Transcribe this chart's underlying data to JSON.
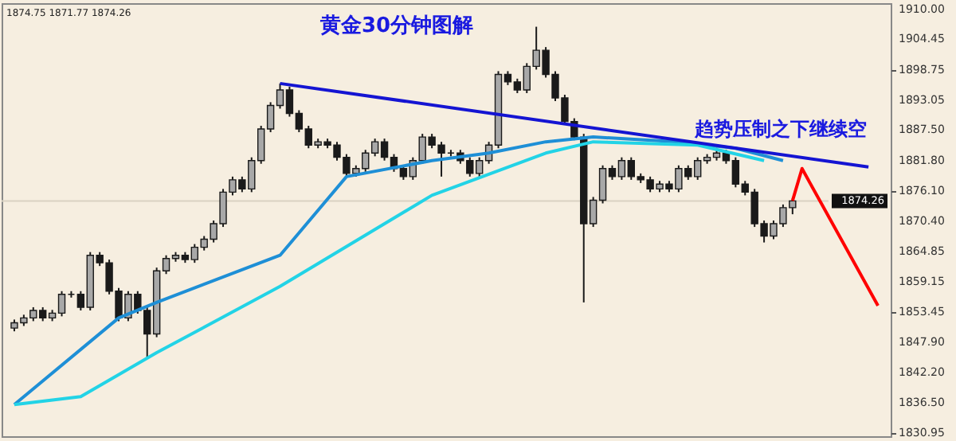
{
  "chart_data": {
    "type": "candlestick",
    "title": "黄金30分钟图解",
    "annotations": [
      "趋势压制之下继续空",
      "1874.75 1871.77 1874.26"
    ],
    "categories": [
      null,
      null,
      null,
      null,
      null,
      null,
      null,
      null,
      null,
      null,
      null,
      null,
      null,
      null,
      null,
      null,
      null,
      null,
      null,
      null,
      null,
      null,
      null,
      null,
      null,
      null,
      null,
      null,
      null,
      null,
      null,
      null,
      null,
      null,
      null,
      null,
      null,
      null,
      null,
      null,
      null,
      null,
      null,
      null,
      null,
      null,
      null,
      null,
      null,
      null,
      null,
      null,
      null,
      null,
      null,
      null,
      null,
      null,
      null,
      null,
      null,
      null,
      null,
      null,
      null,
      null,
      null,
      null,
      null,
      null,
      null,
      null,
      null,
      null,
      null,
      null,
      null,
      null,
      null,
      null,
      null,
      null,
      null,
      null,
      null,
      null,
      null,
      null,
      null,
      null,
      null,
      null
    ],
    "ohlc": [
      [
        1850.5,
        1852.1,
        1849.9,
        1851.5
      ],
      [
        1851.5,
        1853.0,
        1850.9,
        1852.4
      ],
      [
        1852.4,
        1854.4,
        1851.8,
        1853.8
      ],
      [
        1853.8,
        1854.4,
        1851.8,
        1852.4
      ],
      [
        1852.4,
        1853.9,
        1851.8,
        1853.3
      ],
      [
        1853.3,
        1857.4,
        1852.7,
        1856.8
      ],
      [
        1856.8,
        1857.4,
        1856.2,
        1856.8
      ],
      [
        1856.8,
        1857.4,
        1853.8,
        1854.4
      ],
      [
        1854.4,
        1864.7,
        1853.8,
        1864.1
      ],
      [
        1864.1,
        1864.7,
        1862.1,
        1862.7
      ],
      [
        1862.7,
        1863.3,
        1856.8,
        1857.4
      ],
      [
        1857.4,
        1858.0,
        1851.8,
        1852.4
      ],
      [
        1852.4,
        1857.4,
        1851.8,
        1856.8
      ],
      [
        1856.8,
        1857.4,
        1853.2,
        1853.8
      ],
      [
        1853.8,
        1854.4,
        1845.0,
        1849.4
      ],
      [
        1849.4,
        1861.8,
        1848.8,
        1861.2
      ],
      [
        1861.2,
        1864.1,
        1860.6,
        1863.5
      ],
      [
        1863.5,
        1864.7,
        1862.9,
        1864.1
      ],
      [
        1864.1,
        1864.7,
        1862.7,
        1863.3
      ],
      [
        1863.3,
        1866.2,
        1862.7,
        1865.6
      ],
      [
        1865.6,
        1867.7,
        1865.0,
        1867.1
      ],
      [
        1867.1,
        1870.6,
        1866.5,
        1870.0
      ],
      [
        1870.0,
        1876.5,
        1869.4,
        1875.9
      ],
      [
        1875.9,
        1878.8,
        1875.3,
        1878.2
      ],
      [
        1878.2,
        1878.8,
        1875.9,
        1876.5
      ],
      [
        1876.5,
        1882.4,
        1875.9,
        1881.8
      ],
      [
        1881.8,
        1888.3,
        1881.2,
        1887.7
      ],
      [
        1887.7,
        1892.7,
        1887.1,
        1892.1
      ],
      [
        1892.1,
        1896.2,
        1891.5,
        1895.0
      ],
      [
        1895.0,
        1895.6,
        1890.0,
        1890.6
      ],
      [
        1890.6,
        1891.2,
        1887.1,
        1887.7
      ],
      [
        1887.7,
        1888.3,
        1884.1,
        1884.7
      ],
      [
        1884.7,
        1885.9,
        1884.1,
        1885.3
      ],
      [
        1885.3,
        1885.9,
        1884.1,
        1884.7
      ],
      [
        1884.7,
        1885.3,
        1881.8,
        1882.4
      ],
      [
        1882.4,
        1883.0,
        1878.8,
        1879.4
      ],
      [
        1879.4,
        1880.9,
        1878.8,
        1880.3
      ],
      [
        1880.3,
        1883.8,
        1879.7,
        1883.2
      ],
      [
        1883.2,
        1885.9,
        1882.6,
        1885.3
      ],
      [
        1885.3,
        1885.9,
        1881.8,
        1882.4
      ],
      [
        1882.4,
        1883.0,
        1879.7,
        1880.3
      ],
      [
        1880.3,
        1880.9,
        1878.2,
        1878.8
      ],
      [
        1878.8,
        1882.4,
        1878.2,
        1881.8
      ],
      [
        1881.8,
        1886.8,
        1881.2,
        1886.2
      ],
      [
        1886.2,
        1886.8,
        1884.1,
        1884.7
      ],
      [
        1884.7,
        1885.3,
        1878.8,
        1883.2
      ],
      [
        1883.2,
        1883.8,
        1882.6,
        1883.2
      ],
      [
        1883.2,
        1883.8,
        1881.2,
        1881.8
      ],
      [
        1881.8,
        1882.4,
        1878.8,
        1879.4
      ],
      [
        1879.4,
        1882.4,
        1878.8,
        1881.8
      ],
      [
        1881.8,
        1885.3,
        1881.2,
        1884.7
      ],
      [
        1884.7,
        1898.5,
        1884.1,
        1897.9
      ],
      [
        1897.9,
        1898.5,
        1895.9,
        1896.5
      ],
      [
        1896.5,
        1897.1,
        1894.4,
        1895.0
      ],
      [
        1895.0,
        1900.0,
        1894.4,
        1899.4
      ],
      [
        1899.4,
        1906.8,
        1898.8,
        1902.4
      ],
      [
        1902.4,
        1903.0,
        1897.3,
        1897.9
      ],
      [
        1897.9,
        1898.5,
        1892.9,
        1893.5
      ],
      [
        1893.5,
        1894.1,
        1888.5,
        1889.1
      ],
      [
        1889.1,
        1889.7,
        1885.6,
        1886.2
      ],
      [
        1886.2,
        1886.8,
        1855.3,
        1870.0
      ],
      [
        1870.0,
        1875.0,
        1869.4,
        1874.4
      ],
      [
        1874.4,
        1880.9,
        1873.8,
        1880.3
      ],
      [
        1880.3,
        1880.9,
        1878.2,
        1878.8
      ],
      [
        1878.8,
        1882.4,
        1878.2,
        1881.8
      ],
      [
        1881.8,
        1882.4,
        1878.2,
        1878.8
      ],
      [
        1878.8,
        1879.4,
        1877.6,
        1878.2
      ],
      [
        1878.2,
        1878.8,
        1875.9,
        1876.5
      ],
      [
        1876.5,
        1878.0,
        1875.9,
        1877.4
      ],
      [
        1877.4,
        1878.0,
        1875.9,
        1876.5
      ],
      [
        1876.5,
        1880.9,
        1875.9,
        1880.3
      ],
      [
        1880.3,
        1880.9,
        1878.2,
        1878.8
      ],
      [
        1878.8,
        1882.4,
        1878.2,
        1881.8
      ],
      [
        1881.8,
        1883.0,
        1881.2,
        1882.4
      ],
      [
        1882.4,
        1884.2,
        1881.8,
        1883.2
      ],
      [
        1883.2,
        1883.8,
        1881.2,
        1881.8
      ],
      [
        1881.8,
        1882.4,
        1876.8,
        1877.4
      ],
      [
        1877.4,
        1878.0,
        1875.3,
        1875.9
      ],
      [
        1875.9,
        1876.5,
        1869.4,
        1870.0
      ],
      [
        1870.0,
        1870.6,
        1866.5,
        1867.7
      ],
      [
        1867.7,
        1870.6,
        1867.1,
        1870.0
      ],
      [
        1870.0,
        1873.6,
        1869.4,
        1873.0
      ],
      [
        1873.0,
        1874.75,
        1871.77,
        1874.26
      ],
      null,
      null,
      null,
      null,
      null,
      null,
      null,
      null,
      null
    ],
    "series": [
      {
        "type": "line",
        "color": "#1e8fd6",
        "values": [
          1836.2,
          null,
          null,
          null,
          null,
          null,
          null,
          null,
          null,
          null,
          null,
          1852.4,
          null,
          null,
          null,
          1855.3,
          null,
          null,
          null,
          null,
          null,
          null,
          null,
          null,
          null,
          null,
          null,
          null,
          1864.1,
          null,
          null,
          null,
          null,
          null,
          null,
          1878.8,
          null,
          null,
          null,
          null,
          null,
          null,
          null,
          null,
          1881.8,
          null,
          null,
          null,
          null,
          null,
          1883.2,
          null,
          null,
          null,
          null,
          null,
          1885.3,
          null,
          null,
          null,
          null,
          1886.2,
          null,
          null,
          null,
          null,
          null,
          null,
          null,
          null,
          1885.3,
          null,
          null,
          null,
          null,
          null,
          1884.1,
          null,
          null,
          null,
          null,
          1881.8,
          null,
          null,
          null,
          null,
          null,
          null,
          null,
          null,
          null,
          null
        ]
      },
      {
        "type": "line",
        "color": "#22d3e6",
        "values": [
          1836.2,
          null,
          null,
          null,
          null,
          null,
          null,
          1837.7,
          null,
          null,
          null,
          null,
          null,
          null,
          null,
          1845.9,
          null,
          null,
          null,
          null,
          null,
          null,
          null,
          null,
          null,
          null,
          null,
          null,
          1858.3,
          null,
          null,
          null,
          null,
          null,
          null,
          null,
          null,
          null,
          null,
          null,
          null,
          null,
          null,
          null,
          1875.3,
          null,
          null,
          null,
          null,
          null,
          null,
          null,
          null,
          null,
          null,
          null,
          1883.2,
          null,
          null,
          null,
          null,
          1885.3,
          null,
          null,
          null,
          null,
          null,
          null,
          null,
          null,
          null,
          null,
          1884.7,
          null,
          null,
          null,
          null,
          null,
          null,
          1881.8,
          null,
          null,
          null,
          null,
          null,
          null,
          null,
          null,
          null,
          null,
          null,
          null
        ]
      },
      {
        "type": "line",
        "color": "#1414d2",
        "values": [
          null,
          null,
          null,
          null,
          null,
          null,
          null,
          null,
          null,
          null,
          null,
          null,
          null,
          null,
          null,
          null,
          null,
          null,
          null,
          null,
          null,
          null,
          null,
          null,
          null,
          null,
          null,
          null,
          1896.2,
          null,
          null,
          null,
          null,
          null,
          null,
          null,
          null,
          null,
          null,
          null,
          null,
          null,
          null,
          null,
          null,
          null,
          null,
          null,
          null,
          null,
          null,
          null,
          null,
          null,
          null,
          null,
          null,
          null,
          null,
          null,
          null,
          null,
          null,
          null,
          null,
          null,
          null,
          null,
          null,
          null,
          null,
          null,
          null,
          null,
          null,
          null,
          null,
          null,
          null,
          null,
          null,
          null,
          null,
          null,
          null,
          null,
          null,
          null,
          null,
          null,
          1880.6,
          null
        ]
      },
      {
        "type": "line",
        "color": "#ff0000",
        "values": [
          null,
          null,
          null,
          null,
          null,
          null,
          null,
          null,
          null,
          null,
          null,
          null,
          null,
          null,
          null,
          null,
          null,
          null,
          null,
          null,
          null,
          null,
          null,
          null,
          null,
          null,
          null,
          null,
          null,
          null,
          null,
          null,
          null,
          null,
          null,
          null,
          null,
          null,
          null,
          null,
          null,
          null,
          null,
          null,
          null,
          null,
          null,
          null,
          null,
          null,
          null,
          null,
          null,
          null,
          null,
          null,
          null,
          null,
          null,
          null,
          null,
          null,
          null,
          null,
          null,
          null,
          null,
          null,
          null,
          null,
          null,
          null,
          null,
          null,
          null,
          null,
          null,
          null,
          null,
          null,
          null,
          null,
          1874.3,
          1880.3,
          null,
          null,
          null,
          null,
          null,
          null,
          null,
          1854.7
        ]
      }
    ],
    "ylim": [
      1830.3,
      1911.2
    ],
    "yticks": [
      {
        "value": 1910,
        "label": "1910.00"
      },
      {
        "value": 1904.45,
        "label": "1904.45"
      },
      {
        "value": 1898.75,
        "label": "1898.75"
      },
      {
        "value": 1893.05,
        "label": "1893.05"
      },
      {
        "value": 1887.5,
        "label": "1887.50"
      },
      {
        "value": 1881.8,
        "label": "1881.80"
      },
      {
        "value": 1876.1,
        "label": "1876.10"
      },
      {
        "value": 1870.4,
        "label": "1870.40"
      },
      {
        "value": 1864.85,
        "label": "1864.85"
      },
      {
        "value": 1859.15,
        "label": "1859.15"
      },
      {
        "value": 1853.45,
        "label": "1853.45"
      },
      {
        "value": 1847.9,
        "label": "1847.90"
      },
      {
        "value": 1842.2,
        "label": "1842.20"
      },
      {
        "value": 1836.5,
        "label": "1836.50"
      },
      {
        "value": 1830.95,
        "label": "1830.95"
      }
    ],
    "tick_labels": "y",
    "ref_lines": [
      {
        "axis": "y",
        "value": 1874.26,
        "label": "1874.26",
        "color": "#d9d2c2"
      }
    ]
  }
}
